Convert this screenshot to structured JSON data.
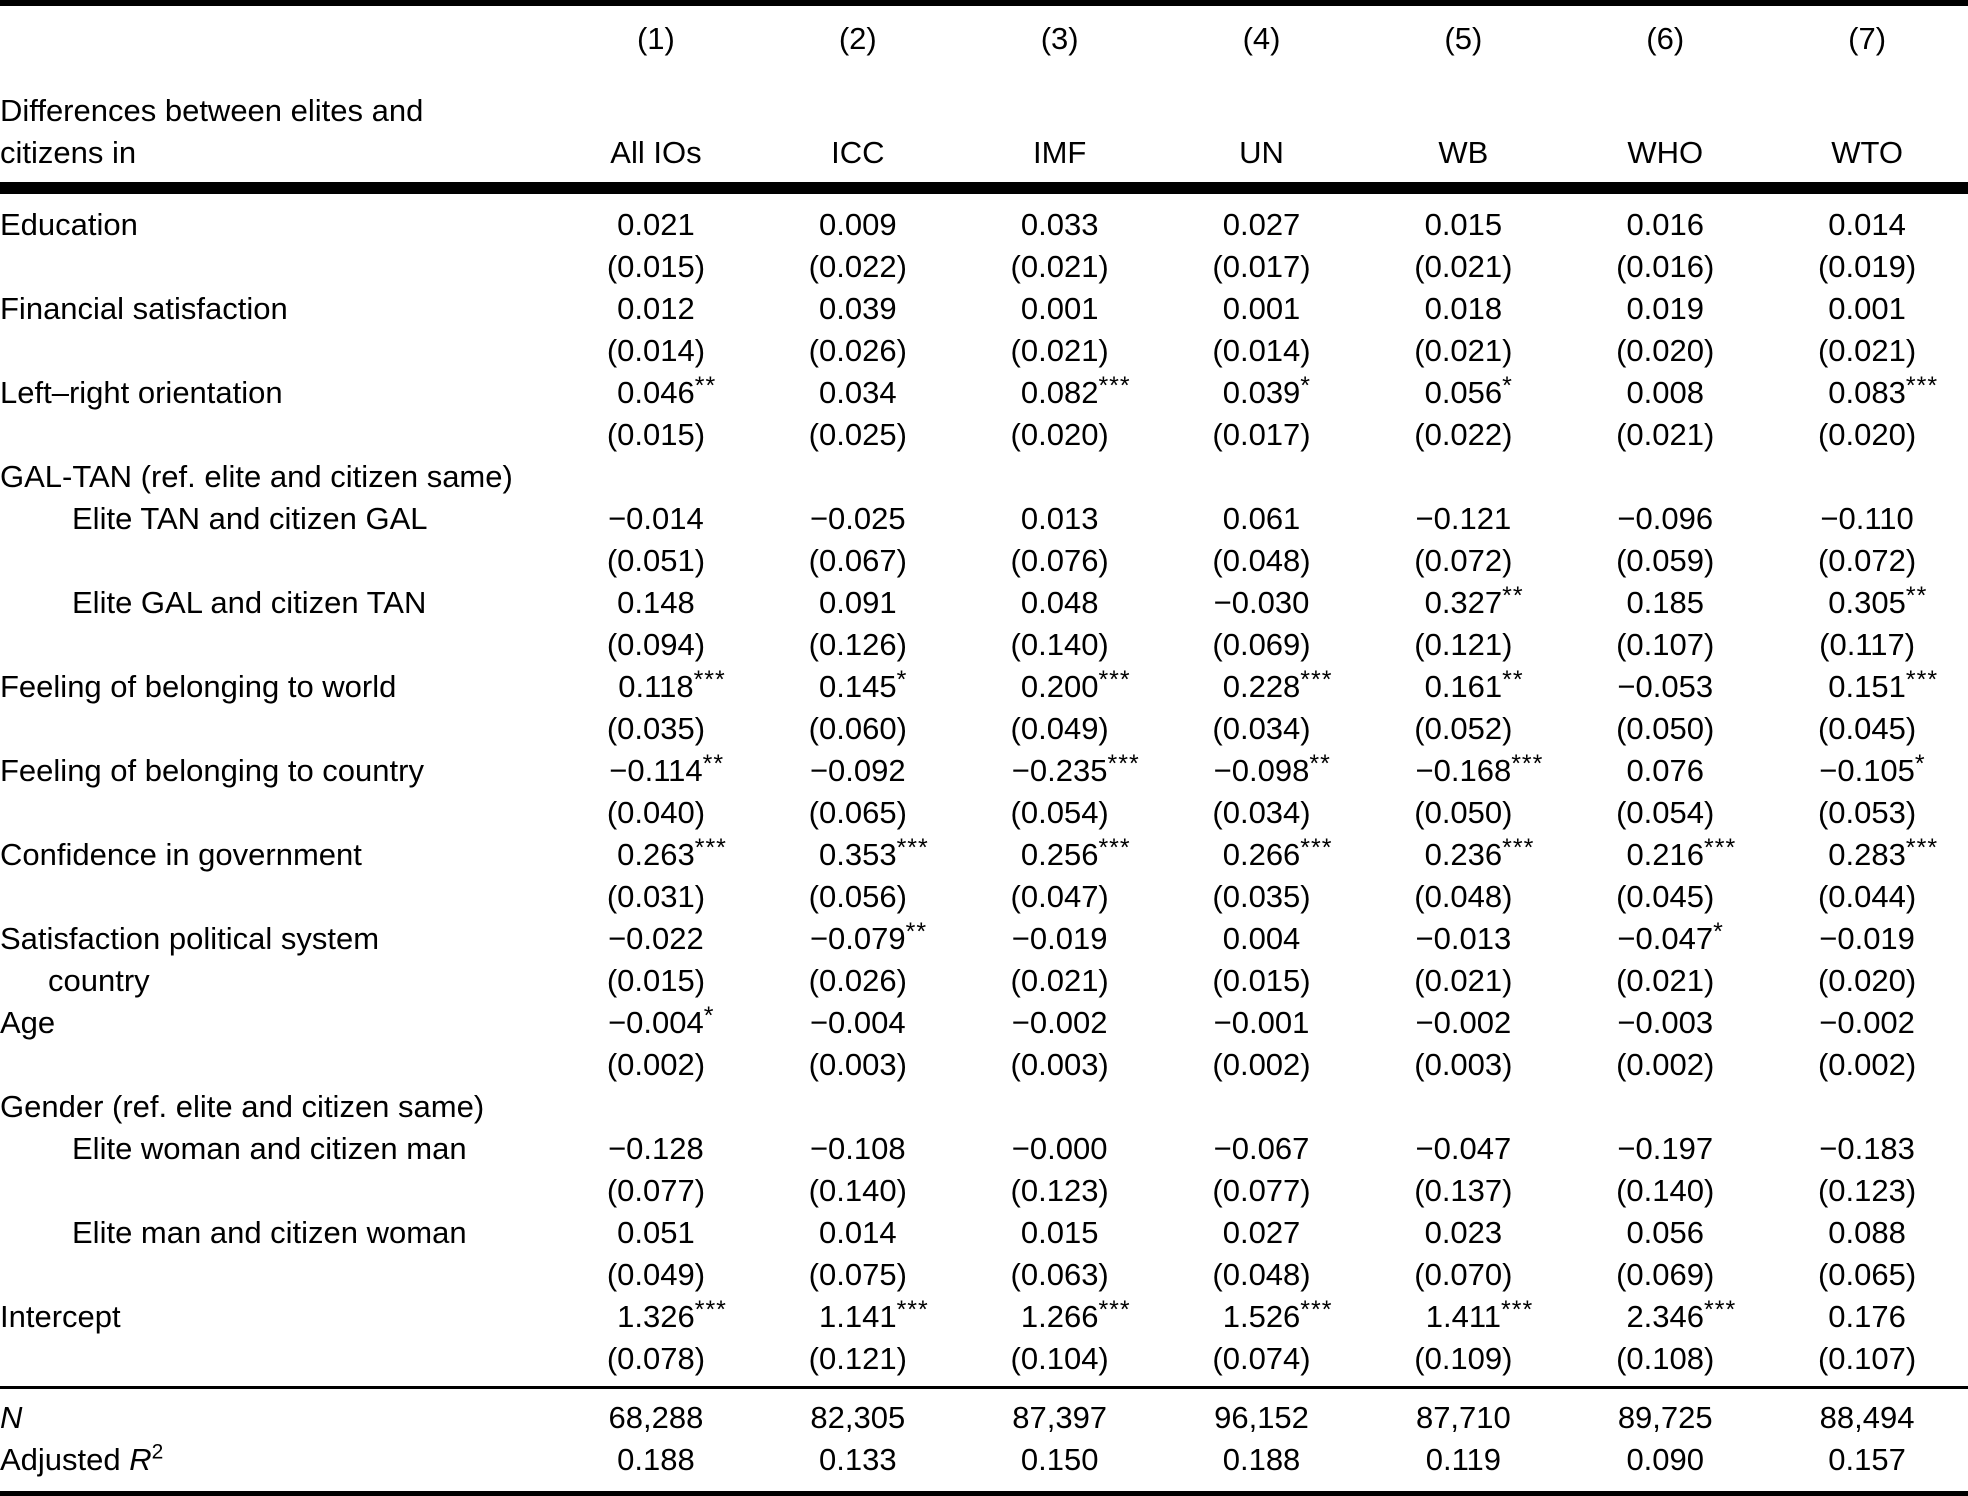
{
  "table": {
    "header": {
      "label_line1": "Differences between elites and",
      "label_line2": "citizens in",
      "columns": [
        {
          "number": "(1)",
          "name": "All IOs"
        },
        {
          "number": "(2)",
          "name": "ICC"
        },
        {
          "number": "(3)",
          "name": "IMF"
        },
        {
          "number": "(4)",
          "name": "UN"
        },
        {
          "number": "(5)",
          "name": "WB"
        },
        {
          "number": "(6)",
          "name": "WHO"
        },
        {
          "number": "(7)",
          "name": "WTO"
        }
      ]
    },
    "rows": [
      {
        "type": "coef",
        "label": "Education",
        "est": [
          "0.021",
          "0.009",
          "0.033",
          "0.027",
          "0.015",
          "0.016",
          "0.014"
        ],
        "se": [
          "(0.015)",
          "(0.022)",
          "(0.021)",
          "(0.017)",
          "(0.021)",
          "(0.016)",
          "(0.019)"
        ]
      },
      {
        "type": "coef",
        "label": "Financial satisfaction",
        "est": [
          "0.012",
          "0.039",
          "0.001",
          "0.001",
          "0.018",
          "0.019",
          "0.001"
        ],
        "se": [
          "(0.014)",
          "(0.026)",
          "(0.021)",
          "(0.014)",
          "(0.021)",
          "(0.020)",
          "(0.021)"
        ]
      },
      {
        "type": "coef",
        "label": "Left–right orientation",
        "est": [
          "0.046**",
          "0.034",
          "0.082***",
          "0.039*",
          "0.056*",
          "0.008",
          "0.083***"
        ],
        "se": [
          "(0.015)",
          "(0.025)",
          "(0.020)",
          "(0.017)",
          "(0.022)",
          "(0.021)",
          "(0.020)"
        ]
      },
      {
        "type": "section",
        "label": "GAL-TAN (ref. elite and citizen same)"
      },
      {
        "type": "coef",
        "label": "Elite TAN and citizen GAL",
        "indent": true,
        "est": [
          "−0.014",
          "−0.025",
          "0.013",
          "0.061",
          "−0.121",
          "−0.096",
          "−0.110"
        ],
        "se": [
          "(0.051)",
          "(0.067)",
          "(0.076)",
          "(0.048)",
          "(0.072)",
          "(0.059)",
          "(0.072)"
        ]
      },
      {
        "type": "coef",
        "label": "Elite GAL and citizen TAN",
        "indent": true,
        "est": [
          "0.148",
          "0.091",
          "0.048",
          "−0.030",
          "0.327**",
          "0.185",
          "0.305**"
        ],
        "se": [
          "(0.094)",
          "(0.126)",
          "(0.140)",
          "(0.069)",
          "(0.121)",
          "(0.107)",
          "(0.117)"
        ]
      },
      {
        "type": "coef",
        "label": "Feeling of belonging to world",
        "est": [
          "0.118***",
          "0.145*",
          "0.200***",
          "0.228***",
          "0.161**",
          "−0.053",
          "0.151***"
        ],
        "se": [
          "(0.035)",
          "(0.060)",
          "(0.049)",
          "(0.034)",
          "(0.052)",
          "(0.050)",
          "(0.045)"
        ]
      },
      {
        "type": "coef",
        "label": "Feeling of belonging to country",
        "est": [
          "−0.114**",
          "−0.092",
          "−0.235***",
          "−0.098**",
          "−0.168***",
          "0.076",
          "−0.105*"
        ],
        "se": [
          "(0.040)",
          "(0.065)",
          "(0.054)",
          "(0.034)",
          "(0.050)",
          "(0.054)",
          "(0.053)"
        ]
      },
      {
        "type": "coef",
        "label": "Confidence in government",
        "est": [
          "0.263***",
          "0.353***",
          "0.256***",
          "0.266***",
          "0.236***",
          "0.216***",
          "0.283***"
        ],
        "se": [
          "(0.031)",
          "(0.056)",
          "(0.047)",
          "(0.035)",
          "(0.048)",
          "(0.045)",
          "(0.044)"
        ]
      },
      {
        "type": "coef",
        "label": "Satisfaction political system",
        "label2": "country",
        "est": [
          "−0.022",
          "−0.079**",
          "−0.019",
          "0.004",
          "−0.013",
          "−0.047*",
          "−0.019"
        ],
        "se": [
          "(0.015)",
          "(0.026)",
          "(0.021)",
          "(0.015)",
          "(0.021)",
          "(0.021)",
          "(0.020)"
        ]
      },
      {
        "type": "coef",
        "label": "Age",
        "est": [
          "−0.004*",
          "−0.004",
          "−0.002",
          "−0.001",
          "−0.002",
          "−0.003",
          "−0.002"
        ],
        "se": [
          "(0.002)",
          "(0.003)",
          "(0.003)",
          "(0.002)",
          "(0.003)",
          "(0.002)",
          "(0.002)"
        ]
      },
      {
        "type": "section",
        "label": "Gender (ref. elite and citizen same)"
      },
      {
        "type": "coef",
        "label": "Elite woman and citizen man",
        "indent": true,
        "est": [
          "−0.128",
          "−0.108",
          "−0.000",
          "−0.067",
          "−0.047",
          "−0.197",
          "−0.183"
        ],
        "se": [
          "(0.077)",
          "(0.140)",
          "(0.123)",
          "(0.077)",
          "(0.137)",
          "(0.140)",
          "(0.123)"
        ]
      },
      {
        "type": "coef",
        "label": "Elite man and citizen woman",
        "indent": true,
        "est": [
          "0.051",
          "0.014",
          "0.015",
          "0.027",
          "0.023",
          "0.056",
          "0.088"
        ],
        "se": [
          "(0.049)",
          "(0.075)",
          "(0.063)",
          "(0.048)",
          "(0.070)",
          "(0.069)",
          "(0.065)"
        ]
      },
      {
        "type": "coef",
        "label": "Intercept",
        "est": [
          "1.326***",
          "1.141***",
          "1.266***",
          "1.526***",
          "1.411***",
          "2.346***",
          "0.176"
        ],
        "se": [
          "(0.078)",
          "(0.121)",
          "(0.104)",
          "(0.074)",
          "(0.109)",
          "(0.108)",
          "(0.107)"
        ]
      }
    ],
    "stats": [
      {
        "label": "N",
        "italic": true,
        "values": [
          "68,288",
          "82,305",
          "87,397",
          "96,152",
          "87,710",
          "89,725",
          "88,494"
        ]
      },
      {
        "label": "Adjusted R",
        "sup": "2",
        "italic_label_part": "R",
        "values": [
          "0.188",
          "0.133",
          "0.150",
          "0.188",
          "0.119",
          "0.090",
          "0.157"
        ]
      }
    ]
  }
}
